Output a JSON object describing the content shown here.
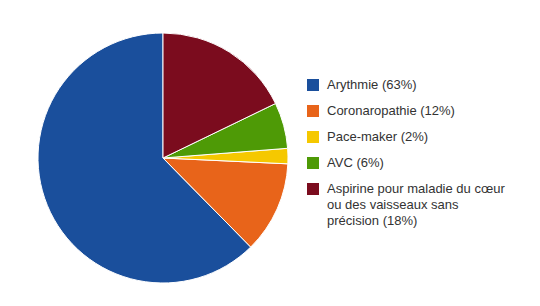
{
  "chart_data": {
    "type": "pie",
    "categories": [
      "Arythmie (63%)",
      "Coronaropathie (12%)",
      "Pace-maker (2%)",
      "AVC (6%)",
      "Aspirine pour maladie du cœur\nou des vaisseaux sans\nprécision (18%)"
    ],
    "values": [
      63,
      12,
      2,
      6,
      18
    ],
    "colors": [
      "#1a4f9c",
      "#e8641a",
      "#f5c800",
      "#4e9a06",
      "#7b0c1e"
    ],
    "legend": "right"
  }
}
